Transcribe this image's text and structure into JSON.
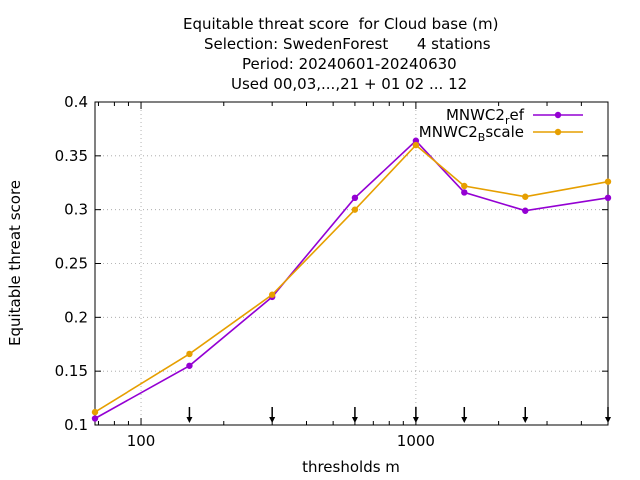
{
  "chart_data": {
    "type": "line",
    "title_lines": [
      "Equitable threat score  for Cloud base (m)",
      "Selection: SwedenForest      4 stations",
      "Period: 20240601-20240630",
      "Used 00,03,...,21 + 01 02 ... 12"
    ],
    "xlabel": "thresholds m",
    "ylabel": "Equitable threat score",
    "x_scale": "log",
    "xlim": [
      68,
      5000
    ],
    "ylim": [
      0.1,
      0.4
    ],
    "yticks": [
      0.1,
      0.15,
      0.2,
      0.25,
      0.3,
      0.35,
      0.4
    ],
    "ytick_labels": [
      "0.1",
      "0.15",
      "0.2",
      "0.25",
      "0.3",
      "0.35",
      "0.4"
    ],
    "xticks": [
      100,
      1000
    ],
    "xtick_labels": [
      "100",
      "1000"
    ],
    "grid": true,
    "legend_position": "top-right",
    "threshold_markers": [
      150,
      300,
      600,
      1000,
      1500,
      2500,
      5000
    ],
    "x": [
      68,
      150,
      300,
      600,
      1000,
      1500,
      2500,
      5000
    ],
    "series": [
      {
        "name": "MNWC2_ref",
        "legend_main": "MNWC2",
        "legend_sub": "r",
        "legend_tail": "ef",
        "color": "#9400d3",
        "values": [
          0.106,
          0.155,
          0.219,
          0.311,
          0.364,
          0.316,
          0.299,
          0.311
        ]
      },
      {
        "name": "MNWC2_Bscale",
        "legend_main": "MNWC2",
        "legend_sub": "B",
        "legend_tail": "scale",
        "color": "#e69f00",
        "values": [
          0.112,
          0.166,
          0.221,
          0.3,
          0.36,
          0.322,
          0.312,
          0.326
        ]
      }
    ]
  }
}
